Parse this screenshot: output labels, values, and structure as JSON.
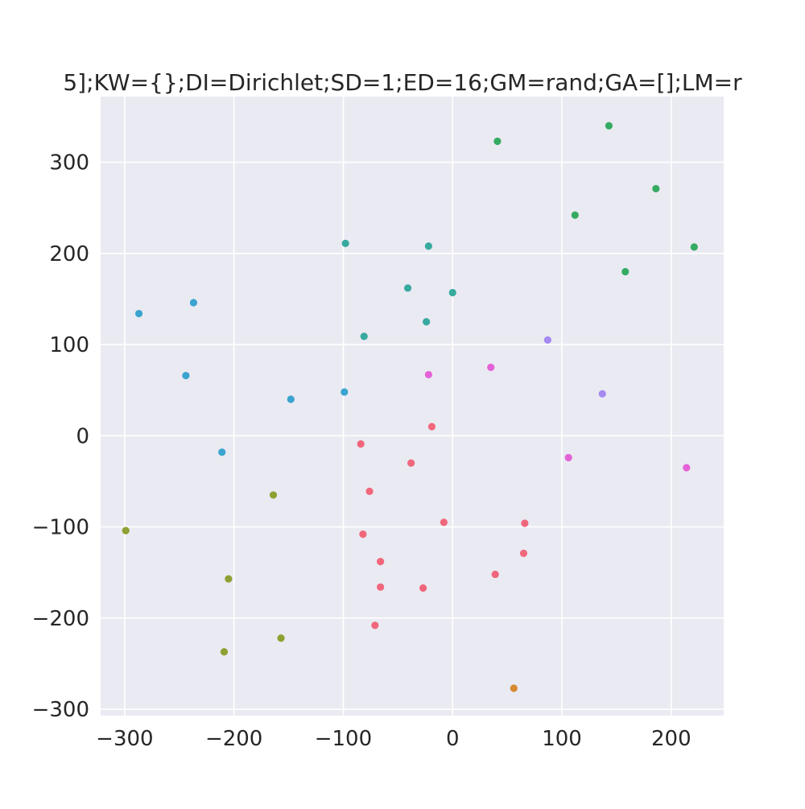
{
  "chart_data": {
    "type": "scatter",
    "title": "5];KW={};DI=Dirichlet;SD=1;ED=16;GM=rand;GA=[];LM=r",
    "xlabel": "",
    "ylabel": "",
    "xlim": [
      -322,
      248
    ],
    "ylim": [
      -307,
      372
    ],
    "x_ticks": [
      -300,
      -200,
      -100,
      0,
      100,
      200
    ],
    "y_ticks": [
      -300,
      -200,
      -100,
      0,
      100,
      200,
      300
    ],
    "x_tick_labels": [
      "−300",
      "−200",
      "−100",
      "0",
      "100",
      "200"
    ],
    "y_tick_labels": [
      "−300",
      "−200",
      "−100",
      "0",
      "100",
      "200",
      "300"
    ],
    "grid": true,
    "background_color": "#eaeaf2",
    "grid_color": "#ffffff",
    "series": [
      {
        "color": "#f0677c",
        "points": [
          {
            "x": -84,
            "y": -9
          },
          {
            "x": -19,
            "y": 10
          },
          {
            "x": -38,
            "y": -30
          },
          {
            "x": -76,
            "y": -61
          },
          {
            "x": -8,
            "y": -95
          },
          {
            "x": 66,
            "y": -96
          },
          {
            "x": -82,
            "y": -108
          },
          {
            "x": 65,
            "y": -129
          },
          {
            "x": -66,
            "y": -138
          },
          {
            "x": 39,
            "y": -152
          },
          {
            "x": -66,
            "y": -166
          },
          {
            "x": -27,
            "y": -167
          },
          {
            "x": -71,
            "y": -208
          }
        ]
      },
      {
        "color": "#d58a30",
        "points": [
          {
            "x": 56,
            "y": -277
          }
        ]
      },
      {
        "color": "#8ea031",
        "points": [
          {
            "x": -164,
            "y": -65
          },
          {
            "x": -299,
            "y": -104
          },
          {
            "x": -205,
            "y": -157
          },
          {
            "x": -157,
            "y": -222
          },
          {
            "x": -209,
            "y": -237
          }
        ]
      },
      {
        "color": "#35ab62",
        "points": [
          {
            "x": 143,
            "y": 340
          },
          {
            "x": 41,
            "y": 323
          },
          {
            "x": 186,
            "y": 271
          },
          {
            "x": 112,
            "y": 242
          },
          {
            "x": 221,
            "y": 207
          },
          {
            "x": 158,
            "y": 180
          }
        ]
      },
      {
        "color": "#37aa9f",
        "points": [
          {
            "x": -98,
            "y": 211
          },
          {
            "x": -22,
            "y": 208
          },
          {
            "x": -41,
            "y": 162
          },
          {
            "x": 0,
            "y": 157
          },
          {
            "x": -24,
            "y": 125
          },
          {
            "x": -81,
            "y": 109
          }
        ]
      },
      {
        "color": "#3ba3cf",
        "points": [
          {
            "x": -287,
            "y": 134
          },
          {
            "x": -237,
            "y": 146
          },
          {
            "x": -244,
            "y": 66
          },
          {
            "x": -148,
            "y": 40
          },
          {
            "x": -99,
            "y": 48
          },
          {
            "x": -211,
            "y": -18
          }
        ]
      },
      {
        "color": "#a58af0",
        "points": [
          {
            "x": 87,
            "y": 105
          },
          {
            "x": 137,
            "y": 46
          }
        ]
      },
      {
        "color": "#e462d8",
        "points": [
          {
            "x": -22,
            "y": 67
          },
          {
            "x": 35,
            "y": 75
          },
          {
            "x": 106,
            "y": -24
          },
          {
            "x": 214,
            "y": -35
          }
        ]
      }
    ]
  }
}
